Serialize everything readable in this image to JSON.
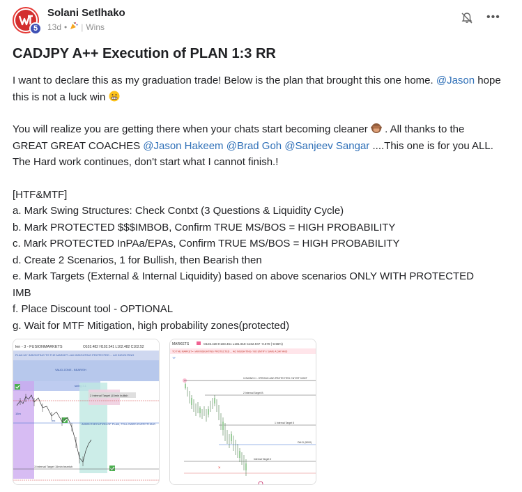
{
  "post": {
    "author": "Solani Setlhako",
    "level": "5",
    "time": "13d",
    "dot": "•",
    "category": "Wins",
    "title": "CADJPY A++ Execution of PLAN 1:3 RR",
    "para1": {
      "text_a": "I want to declare this as my graduation trade! Below is the plan that brought this one home.",
      "mention": "@Jason",
      "text_b": "hope this is not a luck win"
    },
    "para2": {
      "text_a": "You will realize you are getting there when your chats start becoming cleaner",
      "text_b": ". All thanks to the",
      "text_c": "GREAT GREAT COACHES",
      "mention1": "@Jason Hakeem",
      "mention2": "@Brad Goh",
      "mention3": "@Sanjeev Sangar",
      "text_d": "....This one is for you ALL.",
      "text_e": "The Hard work continues, don't start what I cannot finish.!"
    },
    "plan": {
      "heading": "[HTF&MTF]",
      "items": [
        "a. Mark Swing Structures: Check Contxt (3 Questions & Liquidity Cycle)",
        "b. Mark PROTECTED $$$IMBOB, Confirm TRUE MS/BOS = HIGH PROBABILITY",
        "c. Mark PROTECTED InPAa/EPAs, Confirm TRUE MS/BOS = HIGH PROBABILITY",
        "d. Create 2 Scenarios, 1 for Bullish, then Bearish then",
        "e. Mark Targets (External & Internal Liquidity) based on above scenarios ONLY WITH PROTECTED",
        "IMB",
        "f. Place Discount tool - OPTIONAL",
        "g. Wait for MTF Mitigation, high probability zones(protected)"
      ]
    }
  },
  "thumb1": {
    "header": "len - 3 - FUSIONMARKETS",
    "ohlc": "O102.482 H102.541 L102.482 C102.52",
    "top_note": "PLAN MY INSIGHTING TO THE MARKET • AM INSIGHTING PROTECTED ... AO INSIGHTING",
    "blue_label1": "VALID ZONE - BEARISH",
    "blue_label2": "swing 3.1",
    "target_label": "2 Internal Target (15min bullish",
    "execution_label": "A0005 EXECUTION OF PLAN, FOLLOWED EVERYTHING",
    "bottom_label": "3 Internal Target 15min bearish",
    "left_label": "15m",
    "mid_label": "mx"
  },
  "thumb2": {
    "header": "MARKETS",
    "ohlc": "O103.438 H103.461 L101.918 C102.947 -0.570 (-0.55%)",
    "top_note": "TO THE MARKET • I AM INSIGHTING PROTECTED ... AO INSIGHTING / NO ENTRY / SAVE A DAY AND",
    "line1": "0-SWING H - STRONG AND PROTECTED CNT/ST 0000T",
    "line2": "2 Internal Target B",
    "line3": "1 Internal Target 5",
    "line4": "Internal Target 0",
    "line5": "DM-D (5000)",
    "label_tf": "TF"
  },
  "colors": {
    "mention": "#2e6fb7",
    "badge": "#3f51b5",
    "brand_red": "#d32f2f"
  },
  "icons": {
    "bell": "bell-off-icon",
    "more": "more-horizontal-icon",
    "category": "party-popper-icon",
    "emoji1": "grimacing-face-emoji",
    "emoji2": "see-no-evil-monkey-emoji"
  }
}
